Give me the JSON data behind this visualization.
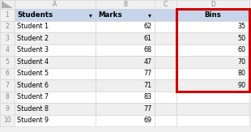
{
  "col_a_header": "Students",
  "col_b_header": "Marks",
  "col_c_header": "",
  "col_d_header": "Bins",
  "students": [
    "Student 1",
    "Student 2",
    "Student 3",
    "Student 4",
    "Student 5",
    "Student 6",
    "Student 7",
    "Student 8",
    "Student 9"
  ],
  "marks": [
    62,
    61,
    68,
    47,
    77,
    71,
    83,
    77,
    69
  ],
  "bins": [
    35,
    50,
    60,
    70,
    80,
    90
  ],
  "header_bg": "#c6d5ea",
  "row_bg_white": "#ffffff",
  "row_bg_gray": "#efefef",
  "excel_header_bg": "#f0f0f0",
  "grid_color": "#d0d0d0",
  "highlight_border": "#cc0000",
  "text_color": "#000000",
  "gray_text": "#888888",
  "header_font_size": 6.2,
  "data_font_size": 5.8,
  "small_font_size": 5.5
}
